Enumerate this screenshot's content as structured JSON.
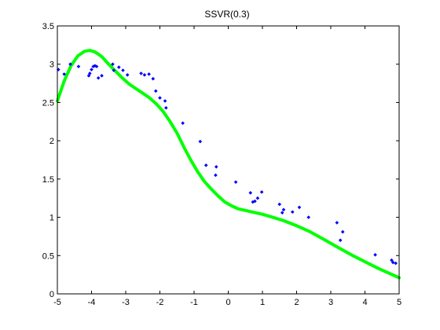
{
  "chart_data": {
    "type": "scatter",
    "title": "SSVR(0.3)",
    "xlabel": "",
    "ylabel": "",
    "xlim": [
      -5,
      5
    ],
    "ylim": [
      0,
      3.5
    ],
    "xticks": [
      -5,
      -4,
      -3,
      -2,
      -1,
      0,
      1,
      2,
      3,
      4,
      5
    ],
    "yticks": [
      0,
      0.5,
      1,
      1.5,
      2,
      2.5,
      3,
      3.5
    ],
    "ytick_labels": [
      "0",
      "0.5",
      "1",
      "1.5",
      "2",
      "2.5",
      "3",
      "3.5"
    ],
    "grid": false,
    "colors": {
      "points": "#0000ff",
      "curve": "#00ff00"
    },
    "series": [
      {
        "kind": "points",
        "x": [
          -4.97,
          -4.8,
          -4.62,
          -4.38,
          -4.08,
          -4.05,
          -4.0,
          -3.95,
          -3.9,
          -3.85,
          -3.8,
          -3.7,
          -3.38,
          -3.35,
          -3.2,
          -3.08,
          -2.95,
          -2.55,
          -2.45,
          -2.32,
          -2.2,
          -2.12,
          -2.0,
          -1.85,
          -1.82,
          -1.33,
          -0.82,
          -0.65,
          -0.37,
          -0.35,
          0.22,
          0.65,
          0.72,
          0.78,
          0.86,
          0.98,
          1.5,
          1.58,
          1.62,
          1.88,
          2.08,
          2.35,
          3.18,
          3.28,
          3.35,
          4.3,
          4.78,
          4.82,
          4.9
        ],
        "y": [
          2.93,
          2.87,
          3.0,
          2.97,
          2.85,
          2.88,
          2.93,
          2.97,
          2.98,
          2.97,
          2.82,
          2.85,
          3.0,
          2.92,
          2.96,
          2.92,
          2.86,
          2.88,
          2.86,
          2.87,
          2.81,
          2.65,
          2.56,
          2.52,
          2.43,
          2.23,
          1.99,
          1.68,
          1.55,
          1.66,
          1.46,
          1.32,
          1.2,
          1.21,
          1.25,
          1.33,
          1.17,
          1.06,
          1.1,
          1.07,
          1.13,
          1.0,
          0.93,
          0.7,
          0.81,
          0.51,
          0.44,
          0.41,
          0.4
        ]
      },
      {
        "kind": "curve",
        "x": [
          -5.0,
          -4.8,
          -4.6,
          -4.4,
          -4.2,
          -4.05,
          -3.9,
          -3.7,
          -3.5,
          -3.3,
          -3.1,
          -2.9,
          -2.7,
          -2.5,
          -2.3,
          -2.1,
          -1.9,
          -1.7,
          -1.5,
          -1.3,
          -1.1,
          -0.9,
          -0.7,
          -0.5,
          -0.3,
          -0.1,
          0.1,
          0.3,
          0.5,
          0.7,
          1.0,
          1.3,
          1.6,
          2.0,
          2.4,
          2.8,
          3.2,
          3.6,
          4.0,
          4.4,
          4.8,
          5.0
        ],
        "y": [
          2.52,
          2.78,
          2.98,
          3.11,
          3.17,
          3.18,
          3.16,
          3.1,
          3.0,
          2.91,
          2.82,
          2.74,
          2.68,
          2.62,
          2.56,
          2.48,
          2.38,
          2.25,
          2.1,
          1.92,
          1.75,
          1.6,
          1.47,
          1.37,
          1.28,
          1.2,
          1.15,
          1.11,
          1.09,
          1.07,
          1.04,
          1.0,
          0.96,
          0.89,
          0.81,
          0.71,
          0.61,
          0.51,
          0.42,
          0.33,
          0.25,
          0.21
        ]
      }
    ]
  }
}
